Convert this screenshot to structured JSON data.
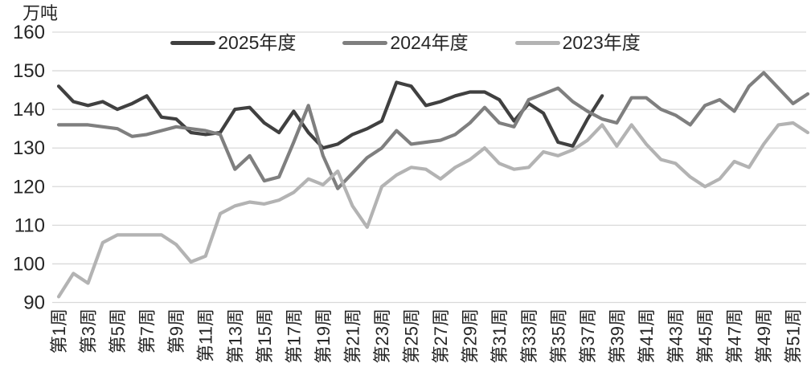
{
  "chart_data": {
    "type": "line",
    "title": "",
    "unit_label": "万吨",
    "grid": "horizontal",
    "legend_position": "top-center",
    "background": "#ffffff",
    "gridline_color": "#d9d9d9",
    "text_color": "#262626",
    "y_axis": {
      "min": 90,
      "max": 160,
      "step": 10,
      "ticks": [
        160,
        150,
        140,
        130,
        120,
        110,
        100,
        90
      ]
    },
    "x_axis": {
      "label_every": 2,
      "categories": [
        "第1周",
        "第2周",
        "第3周",
        "第4周",
        "第5周",
        "第6周",
        "第7周",
        "第8周",
        "第9周",
        "第10周",
        "第11周",
        "第12周",
        "第13周",
        "第14周",
        "第15周",
        "第16周",
        "第17周",
        "第18周",
        "第19周",
        "第20周",
        "第21周",
        "第22周",
        "第23周",
        "第24周",
        "第25周",
        "第26周",
        "第27周",
        "第28周",
        "第29周",
        "第30周",
        "第31周",
        "第32周",
        "第33周",
        "第34周",
        "第35周",
        "第36周",
        "第37周",
        "第38周",
        "第39周",
        "第40周",
        "第41周",
        "第42周",
        "第43周",
        "第44周",
        "第45周",
        "第46周",
        "第47周",
        "第48周",
        "第49周",
        "第50周",
        "第51周",
        "第52周"
      ]
    },
    "series": [
      {
        "name": "2025年度",
        "color": "#404040",
        "values": [
          146,
          142,
          141,
          142,
          140,
          141.5,
          143.5,
          138,
          137.5,
          134,
          133.5,
          134,
          140,
          140.5,
          136.5,
          134,
          139.5,
          134,
          130,
          131,
          133.5,
          135,
          137,
          147,
          146,
          141,
          142,
          143.5,
          144.5,
          144.5,
          142.5,
          137,
          141.5,
          139,
          131.5,
          130.5,
          137.5,
          143.5
        ]
      },
      {
        "name": "2024年度",
        "color": "#7f7f7f",
        "values": [
          136,
          136,
          136,
          135.5,
          135,
          133,
          133.5,
          134.5,
          135.5,
          135,
          134.5,
          133.5,
          124.5,
          128,
          121.5,
          122.5,
          131.5,
          141,
          128,
          119.5,
          123.5,
          127.5,
          130,
          134.5,
          131,
          131.5,
          132,
          133.5,
          136.5,
          140.5,
          136.5,
          135.5,
          142.5,
          144,
          145.5,
          142,
          139.5,
          137.5,
          136.5,
          143,
          143,
          140,
          138.5,
          136,
          141,
          142.5,
          139.5,
          146,
          149.5,
          145.5,
          141.5,
          144
        ]
      },
      {
        "name": "2023年度",
        "color": "#b3b3b3",
        "values": [
          91.5,
          97.5,
          95,
          105.5,
          107.5,
          107.5,
          107.5,
          107.5,
          105,
          100.5,
          102,
          113,
          115,
          116,
          115.5,
          116.5,
          118.5,
          122,
          120.5,
          124,
          115,
          109.5,
          120,
          123,
          125,
          124.5,
          122,
          125,
          127,
          130,
          126,
          124.5,
          125,
          129,
          128,
          129.5,
          132,
          136,
          130.5,
          136,
          131,
          127,
          126,
          122.5,
          120,
          122,
          126.5,
          125,
          131,
          136,
          136.5,
          134
        ]
      }
    ]
  }
}
